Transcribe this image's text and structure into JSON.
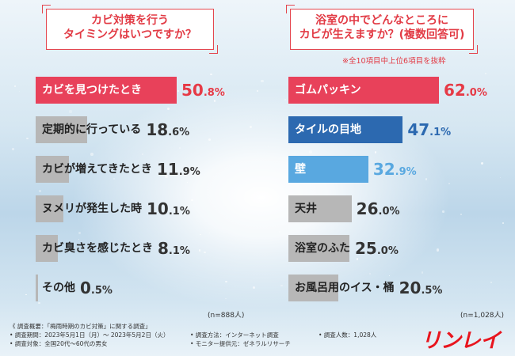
{
  "left_panel": {
    "title_lines": [
      "カビ対策を行う",
      "タイミングはいつですか？"
    ],
    "sample": "(n=888人)"
  },
  "right_panel": {
    "title_lines": [
      "浴室の中でどんなところに",
      "カビが生えますか？(複数回答可)"
    ],
    "note": "※全10項目中上位6項目を抜粋",
    "sample": "(n=1,028人)"
  },
  "colors": {
    "accent": "#e8415a",
    "gray": "#b7b7b7",
    "blue_dark": "#2c69b0",
    "blue_light": "#59a8e0",
    "value_red": "#e63a46",
    "value_gray": "#333333"
  },
  "chart_data": [
    {
      "type": "bar",
      "orientation": "horizontal",
      "title": "カビ対策を行う タイミングはいつですか？",
      "categories": [
        "カビを見つけたとき",
        "定期的に行っている",
        "カビが増えてきたとき",
        "ヌメリが発生した時",
        "カビ臭さを感じたとき",
        "その他"
      ],
      "values": [
        50.8,
        18.6,
        11.9,
        10.1,
        8.1,
        0.5
      ],
      "unit": "%",
      "sample_size": "(n=888人)"
    },
    {
      "type": "bar",
      "orientation": "horizontal",
      "title": "浴室の中でどんなところに カビが生えますか？(複数回答可)",
      "categories": [
        "ゴムパッキン",
        "タイルの目地",
        "壁",
        "天井",
        "浴室のふた",
        "お風呂用のイス・桶"
      ],
      "values": [
        62.0,
        47.1,
        32.9,
        26.0,
        25.0,
        20.5
      ],
      "unit": "%",
      "note": "※全10項目中上位6項目を抜粋",
      "sample_size": "(n=1,028人)"
    }
  ],
  "footer": {
    "overview": "《 調査概要：「梅雨時期のカビ対策」に関する調査」",
    "period": "• 調査期間：2023年5月1日（月）～ 2023年5月2日（火）",
    "target": "• 調査対象：全国20代～60代の男女",
    "method": "• 調査方法：インターネット調査",
    "provider": "• モニター提供元：ゼネラルリサーチ",
    "count": "• 調査人数：1,028人"
  },
  "logo": "リンレイ"
}
